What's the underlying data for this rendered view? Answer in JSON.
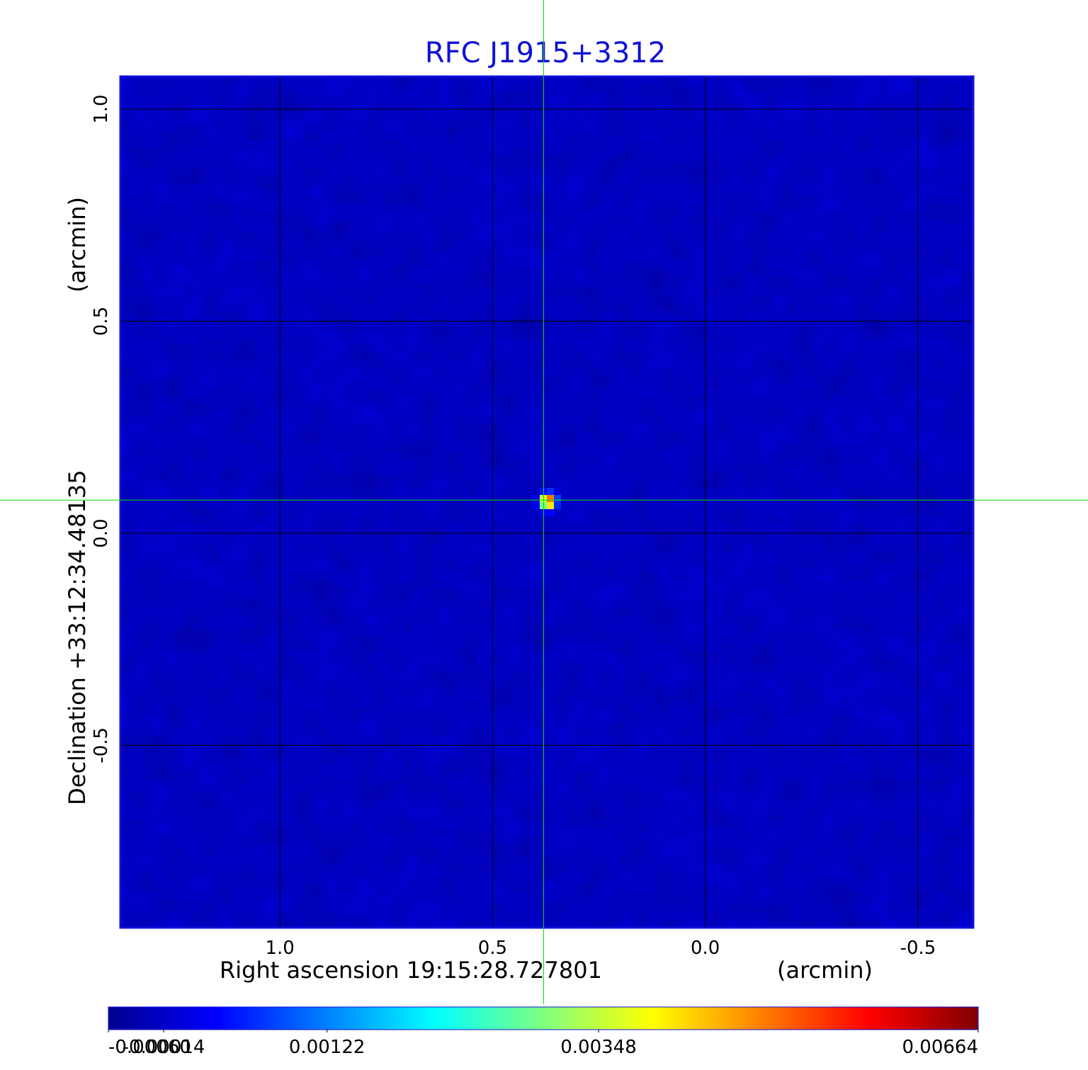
{
  "chart_data": {
    "type": "heatmap",
    "title": "RFC J1915+3312",
    "xlabel": "Right ascension  19:15:28.727801",
    "xunit": "(arcmin)",
    "ylabel": "Declination  +33:12:34.48135",
    "yunit": "(arcmin)",
    "x_ticks": [
      "1.0",
      "0.5",
      "0.0",
      "-0.5"
    ],
    "x_tick_values": [
      1.0,
      0.5,
      0.0,
      -0.5
    ],
    "y_ticks": [
      "1.0",
      "0.5",
      "0.0",
      "-0.5"
    ],
    "y_tick_values": [
      1.0,
      0.5,
      0.0,
      -0.5
    ],
    "xlim": [
      1.375,
      -0.63
    ],
    "ylim": [
      -0.93,
      1.077
    ],
    "grid": true,
    "crosshair": {
      "x": 0.38,
      "y": 0.078
    },
    "source": {
      "x": 0.37,
      "y": 0.075,
      "peak": 0.00664
    },
    "colorbar": {
      "orientation": "horizontal",
      "placement": "bottom",
      "range": [
        -0.0006,
        0.00664
      ],
      "ticks": [
        "-0.00060",
        "-0.00014",
        "0.00122",
        "0.00348",
        "0.00664"
      ],
      "tick_values": [
        -0.0006,
        -0.00014,
        0.00122,
        0.00348,
        0.00664
      ],
      "colormap": "jet"
    },
    "noise_level": -0.00014
  },
  "colors": {
    "title": "#1010d8",
    "frame": "#1010d8",
    "grid": "#000000",
    "crosshair": "#00dd00"
  }
}
